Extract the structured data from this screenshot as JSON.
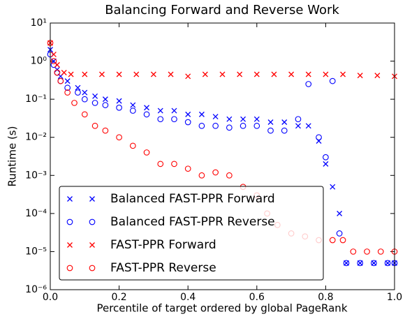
{
  "chart_data": {
    "type": "scatter",
    "title": "Balancing Forward and Reverse Work",
    "x_label": "Percentile of target ordered by global PageRank",
    "y_label": "Runtime  (s)",
    "xlim": [
      0,
      1
    ],
    "ylim": [
      1e-06,
      10
    ],
    "log_y": true,
    "grid": false,
    "legend": "lower left",
    "xticks": [
      {
        "value": 0,
        "label": "0.0"
      },
      0.2,
      0.4,
      0.6,
      0.8,
      {
        "value": 1,
        "label": "1.0"
      }
    ],
    "yticks": [
      {
        "value": 1e-06,
        "label": "10⁻⁶"
      },
      {
        "value": 1e-05,
        "label": "10⁻⁵"
      },
      {
        "value": 0.0001,
        "label": "10⁻⁴"
      },
      {
        "value": 0.001,
        "label": "10⁻³"
      },
      {
        "value": 0.01,
        "label": "10⁻²"
      },
      {
        "value": 0.1,
        "label": "10⁻¹"
      },
      {
        "value": 1,
        "label": "10⁰"
      },
      {
        "value": 10,
        "label": "10¹"
      }
    ],
    "series": [
      {
        "name": "Balanced FAST-PPR Forward",
        "color": "#0000ff",
        "marker": "x",
        "x": [
          0,
          0.01,
          0.02,
          0.03,
          0.05,
          0.08,
          0.1,
          0.13,
          0.16,
          0.2,
          0.24,
          0.28,
          0.32,
          0.36,
          0.4,
          0.44,
          0.48,
          0.52,
          0.56,
          0.6,
          0.64,
          0.68,
          0.72,
          0.75,
          0.78,
          0.8,
          0.82,
          0.84,
          0.86,
          0.9,
          0.94,
          0.98,
          1.0
        ],
        "y": [
          2,
          1,
          0.6,
          0.4,
          0.3,
          0.2,
          0.15,
          0.12,
          0.1,
          0.09,
          0.07,
          0.06,
          0.05,
          0.05,
          0.04,
          0.04,
          0.035,
          0.03,
          0.03,
          0.03,
          0.025,
          0.025,
          0.02,
          0.02,
          0.008,
          0.002,
          0.0005,
          0.0001,
          5e-06,
          5e-06,
          5e-06,
          5e-06,
          5e-06
        ]
      },
      {
        "name": "Balanced FAST-PPR Reverse",
        "color": "#0000ff",
        "marker": "o",
        "x": [
          0,
          0.01,
          0.02,
          0.03,
          0.05,
          0.08,
          0.1,
          0.13,
          0.16,
          0.2,
          0.24,
          0.28,
          0.32,
          0.36,
          0.4,
          0.44,
          0.48,
          0.52,
          0.56,
          0.6,
          0.64,
          0.68,
          0.72,
          0.75,
          0.78,
          0.8,
          0.82,
          0.84,
          0.86,
          0.9,
          0.94,
          0.98,
          1.0
        ],
        "y": [
          1.5,
          0.8,
          0.5,
          0.3,
          0.2,
          0.15,
          0.1,
          0.08,
          0.07,
          0.06,
          0.05,
          0.04,
          0.03,
          0.03,
          0.025,
          0.02,
          0.02,
          0.018,
          0.02,
          0.02,
          0.015,
          0.015,
          0.03,
          0.25,
          0.01,
          0.003,
          0.3,
          3e-05,
          5e-06,
          5e-06,
          5e-06,
          5e-06,
          5e-06
        ]
      },
      {
        "name": "FAST-PPR Forward",
        "color": "#ff0000",
        "marker": "x",
        "x": [
          0,
          0.01,
          0.02,
          0.04,
          0.06,
          0.1,
          0.15,
          0.2,
          0.25,
          0.3,
          0.35,
          0.4,
          0.45,
          0.5,
          0.55,
          0.6,
          0.65,
          0.7,
          0.75,
          0.8,
          0.85,
          0.9,
          0.95,
          1.0
        ],
        "y": [
          3,
          1.5,
          0.8,
          0.5,
          0.45,
          0.45,
          0.45,
          0.45,
          0.45,
          0.45,
          0.45,
          0.4,
          0.45,
          0.45,
          0.45,
          0.45,
          0.45,
          0.45,
          0.45,
          0.45,
          0.45,
          0.42,
          0.42,
          0.4
        ]
      },
      {
        "name": "FAST-PPR Reverse",
        "color": "#ff0000",
        "marker": "o",
        "x": [
          0,
          0.01,
          0.02,
          0.03,
          0.05,
          0.07,
          0.1,
          0.13,
          0.16,
          0.2,
          0.24,
          0.28,
          0.32,
          0.36,
          0.4,
          0.44,
          0.48,
          0.52,
          0.56,
          0.6,
          0.63,
          0.66,
          0.7,
          0.74,
          0.78,
          0.82,
          0.85,
          0.88,
          0.92,
          0.96,
          1.0
        ],
        "y": [
          3,
          1,
          0.5,
          0.3,
          0.15,
          0.08,
          0.04,
          0.02,
          0.015,
          0.01,
          0.006,
          0.004,
          0.002,
          0.002,
          0.0015,
          0.001,
          0.0012,
          0.001,
          0.0005,
          0.0003,
          0.0001,
          5e-05,
          3e-05,
          2.5e-05,
          2e-05,
          2e-05,
          2e-05,
          1e-05,
          1e-05,
          1e-05,
          1e-05
        ]
      }
    ]
  }
}
